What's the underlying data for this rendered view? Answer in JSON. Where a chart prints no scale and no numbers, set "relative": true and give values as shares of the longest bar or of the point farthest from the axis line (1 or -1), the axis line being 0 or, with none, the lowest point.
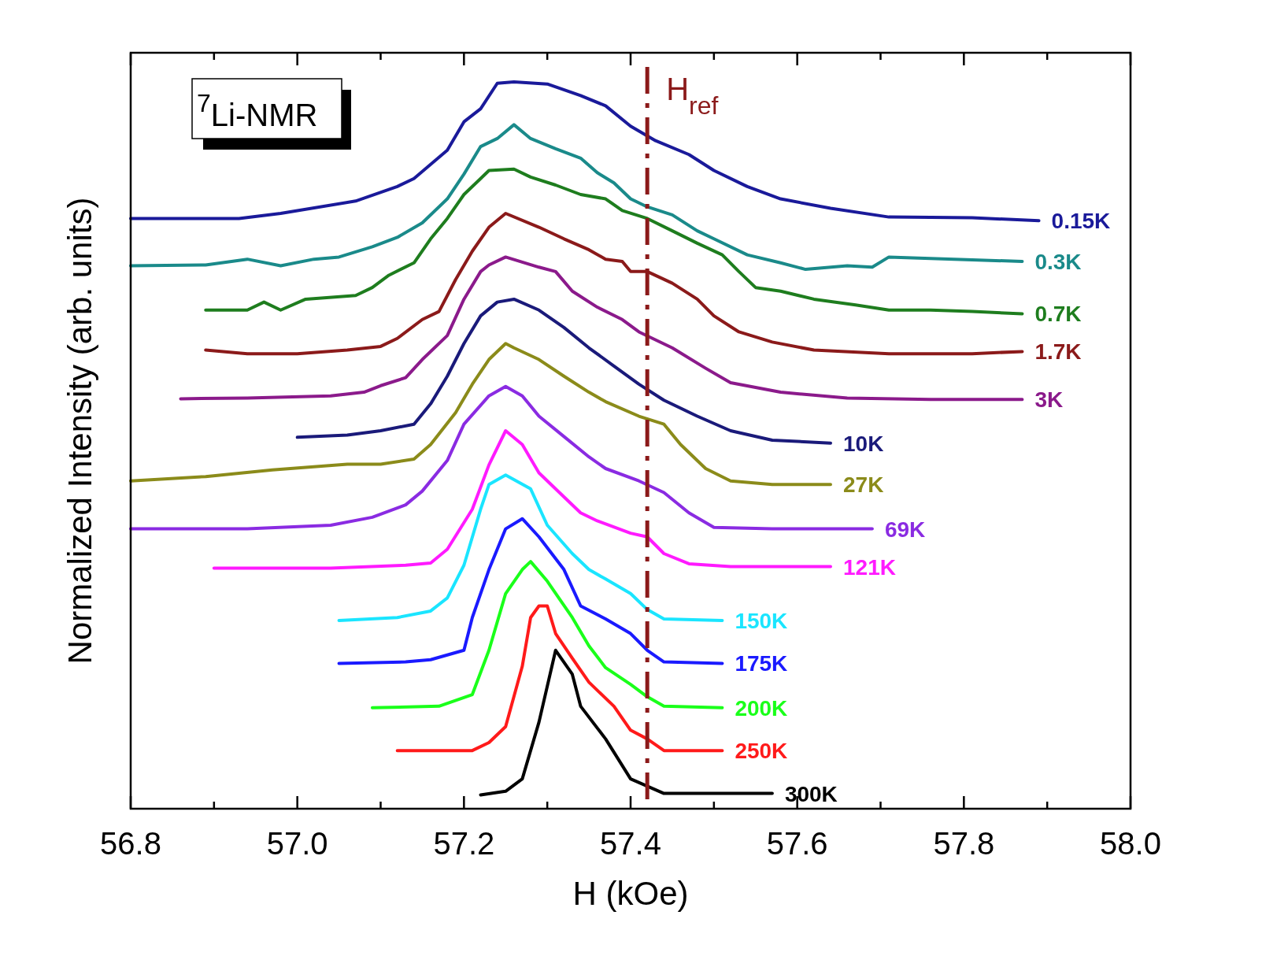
{
  "chart_data": {
    "type": "line",
    "relative": true,
    "xlabel": "H (kOe)",
    "ylabel": "Normalized Intensity (arb. units)",
    "xlim": [
      56.8,
      58.0
    ],
    "xticks": [
      {
        "value": 56.8,
        "label": "56.8"
      },
      {
        "value": 56.9,
        "label": null
      },
      {
        "value": 57.0,
        "label": "57.0"
      },
      {
        "value": 57.1,
        "label": null
      },
      {
        "value": 57.2,
        "label": "57.2"
      },
      {
        "value": 57.3,
        "label": null
      },
      {
        "value": 57.4,
        "label": "57.4"
      },
      {
        "value": 57.5,
        "label": null
      },
      {
        "value": 57.6,
        "label": "57.6"
      },
      {
        "value": 57.7,
        "label": null
      },
      {
        "value": 57.8,
        "label": "57.8"
      },
      {
        "value": 57.9,
        "label": null
      },
      {
        "value": 58.0,
        "label": "58.0"
      }
    ],
    "grid": false,
    "legend": false,
    "marker": "none",
    "line_style": "solid",
    "tick_labels": "x",
    "ref_lines": [
      {
        "axis": "x",
        "value": 57.42,
        "label": "H$_{ref}$",
        "color": "#8b1a1a",
        "line_style": "dashed"
      }
    ],
    "annotations": [
      "$^{7}$Li-NMR"
    ],
    "series": [
      {
        "name": "0.15K",
        "color": "#1a1a9a",
        "x": [
          56.8,
          56.93,
          56.98,
          57.07,
          57.12,
          57.14,
          57.18,
          57.2,
          57.22,
          57.24,
          57.26,
          57.3,
          57.34,
          57.37,
          57.4,
          57.43,
          57.47,
          57.5,
          57.54,
          57.58,
          57.64,
          57.71,
          57.81,
          57.89
        ],
        "values": [
          0.812,
          0.812,
          0.819,
          0.836,
          0.856,
          0.867,
          0.906,
          0.945,
          0.963,
          0.998,
          1.0,
          0.997,
          0.981,
          0.967,
          0.939,
          0.919,
          0.9,
          0.878,
          0.856,
          0.839,
          0.826,
          0.814,
          0.813,
          0.809
        ]
      },
      {
        "name": "0.3K",
        "color": "#1a8a8a",
        "x": [
          56.8,
          56.89,
          56.94,
          56.98,
          57.02,
          57.05,
          57.09,
          57.12,
          57.15,
          57.18,
          57.2,
          57.22,
          57.24,
          57.26,
          57.28,
          57.31,
          57.34,
          57.36,
          57.38,
          57.4,
          57.42,
          57.45,
          57.48,
          57.5,
          57.54,
          57.58,
          57.61,
          57.66,
          57.69,
          57.71,
          57.81,
          57.87
        ],
        "values": [
          0.747,
          0.748,
          0.756,
          0.747,
          0.756,
          0.759,
          0.773,
          0.786,
          0.806,
          0.839,
          0.873,
          0.911,
          0.922,
          0.941,
          0.922,
          0.908,
          0.895,
          0.875,
          0.861,
          0.839,
          0.828,
          0.817,
          0.795,
          0.784,
          0.762,
          0.751,
          0.742,
          0.747,
          0.745,
          0.759,
          0.755,
          0.753
        ]
      },
      {
        "name": "0.7K",
        "color": "#1e7d1e",
        "x": [
          56.89,
          56.94,
          56.96,
          56.98,
          57.01,
          57.07,
          57.09,
          57.11,
          57.14,
          57.16,
          57.18,
          57.2,
          57.22,
          57.23,
          57.26,
          57.28,
          57.31,
          57.34,
          57.37,
          57.39,
          57.42,
          57.45,
          57.48,
          57.51,
          57.53,
          57.55,
          57.58,
          57.62,
          57.67,
          57.71,
          57.76,
          57.81,
          57.87
        ],
        "values": [
          0.686,
          0.686,
          0.697,
          0.686,
          0.701,
          0.706,
          0.717,
          0.734,
          0.751,
          0.784,
          0.812,
          0.845,
          0.867,
          0.878,
          0.88,
          0.869,
          0.858,
          0.845,
          0.839,
          0.823,
          0.812,
          0.795,
          0.778,
          0.762,
          0.739,
          0.717,
          0.712,
          0.701,
          0.693,
          0.686,
          0.686,
          0.684,
          0.681
        ]
      },
      {
        "name": "1.7K",
        "color": "#8b1a1a",
        "x": [
          56.89,
          56.94,
          57.0,
          57.06,
          57.1,
          57.12,
          57.15,
          57.17,
          57.19,
          57.21,
          57.23,
          57.25,
          57.29,
          57.32,
          57.35,
          57.37,
          57.39,
          57.4,
          57.42,
          57.45,
          57.48,
          57.5,
          57.53,
          57.57,
          57.62,
          57.71,
          57.81,
          57.87
        ],
        "values": [
          0.631,
          0.626,
          0.626,
          0.631,
          0.636,
          0.647,
          0.673,
          0.684,
          0.728,
          0.767,
          0.8,
          0.819,
          0.8,
          0.784,
          0.769,
          0.756,
          0.753,
          0.739,
          0.739,
          0.723,
          0.701,
          0.678,
          0.656,
          0.642,
          0.631,
          0.626,
          0.626,
          0.629
        ]
      },
      {
        "name": "3K",
        "color": "#8b1a8b",
        "x": [
          56.86,
          56.94,
          57.04,
          57.08,
          57.1,
          57.13,
          57.15,
          57.18,
          57.2,
          57.22,
          57.23,
          57.25,
          57.29,
          57.31,
          57.33,
          57.36,
          57.39,
          57.41,
          57.45,
          57.49,
          57.52,
          57.58,
          57.66,
          57.76,
          57.87
        ],
        "values": [
          0.564,
          0.565,
          0.568,
          0.573,
          0.582,
          0.593,
          0.618,
          0.651,
          0.701,
          0.739,
          0.748,
          0.759,
          0.745,
          0.739,
          0.712,
          0.69,
          0.673,
          0.656,
          0.634,
          0.606,
          0.586,
          0.573,
          0.565,
          0.563,
          0.563
        ]
      },
      {
        "name": "10K",
        "color": "#1a1a7a",
        "x": [
          57.0,
          57.06,
          57.1,
          57.14,
          57.16,
          57.18,
          57.2,
          57.22,
          57.24,
          57.26,
          57.29,
          57.32,
          57.35,
          57.38,
          57.41,
          57.44,
          57.48,
          57.52,
          57.57,
          57.64
        ],
        "values": [
          0.511,
          0.514,
          0.52,
          0.529,
          0.557,
          0.595,
          0.64,
          0.678,
          0.697,
          0.701,
          0.686,
          0.662,
          0.634,
          0.609,
          0.584,
          0.562,
          0.54,
          0.52,
          0.507,
          0.503
        ]
      },
      {
        "name": "27K",
        "color": "#8b8b1a",
        "x": [
          56.8,
          56.89,
          56.97,
          57.06,
          57.1,
          57.14,
          57.16,
          57.19,
          57.21,
          57.23,
          57.25,
          57.26,
          57.29,
          57.32,
          57.35,
          57.37,
          57.41,
          57.44,
          57.46,
          57.49,
          57.52,
          57.57,
          57.64
        ],
        "values": [
          0.451,
          0.457,
          0.466,
          0.474,
          0.474,
          0.481,
          0.501,
          0.545,
          0.584,
          0.618,
          0.64,
          0.634,
          0.618,
          0.595,
          0.573,
          0.56,
          0.54,
          0.529,
          0.501,
          0.468,
          0.451,
          0.446,
          0.446
        ]
      },
      {
        "name": "69K",
        "color": "#8a2be2",
        "x": [
          56.8,
          56.94,
          57.04,
          57.09,
          57.13,
          57.15,
          57.18,
          57.2,
          57.23,
          57.25,
          57.27,
          57.29,
          57.32,
          57.35,
          57.37,
          57.41,
          57.44,
          57.47,
          57.5,
          57.57,
          57.69
        ],
        "values": [
          0.385,
          0.385,
          0.39,
          0.401,
          0.418,
          0.437,
          0.479,
          0.529,
          0.568,
          0.581,
          0.568,
          0.54,
          0.512,
          0.484,
          0.468,
          0.451,
          0.435,
          0.407,
          0.387,
          0.385,
          0.385
        ]
      },
      {
        "name": "121K",
        "color": "#ff1aff",
        "x": [
          56.9,
          57.04,
          57.13,
          57.16,
          57.18,
          57.21,
          57.23,
          57.25,
          57.27,
          57.29,
          57.32,
          57.34,
          57.36,
          57.4,
          57.42,
          57.44,
          57.47,
          57.52,
          57.64
        ],
        "values": [
          0.331,
          0.331,
          0.335,
          0.338,
          0.357,
          0.412,
          0.473,
          0.52,
          0.501,
          0.462,
          0.429,
          0.407,
          0.396,
          0.379,
          0.374,
          0.351,
          0.337,
          0.333,
          0.333
        ]
      },
      {
        "name": "150K",
        "color": "#1ae5ff",
        "x": [
          57.05,
          57.12,
          57.16,
          57.18,
          57.2,
          57.22,
          57.23,
          57.25,
          57.28,
          57.3,
          57.33,
          57.35,
          57.37,
          57.4,
          57.42,
          57.44,
          57.51
        ],
        "values": [
          0.259,
          0.263,
          0.272,
          0.29,
          0.335,
          0.412,
          0.446,
          0.459,
          0.44,
          0.39,
          0.351,
          0.329,
          0.316,
          0.296,
          0.274,
          0.261,
          0.259
        ]
      },
      {
        "name": "175K",
        "color": "#1a1aff",
        "x": [
          57.05,
          57.13,
          57.16,
          57.2,
          57.21,
          57.23,
          57.25,
          57.27,
          57.29,
          57.32,
          57.34,
          57.37,
          57.4,
          57.42,
          57.44,
          57.51
        ],
        "values": [
          0.2,
          0.202,
          0.205,
          0.218,
          0.263,
          0.329,
          0.385,
          0.399,
          0.374,
          0.329,
          0.279,
          0.261,
          0.241,
          0.218,
          0.202,
          0.2
        ]
      },
      {
        "name": "200K",
        "color": "#1aff1a",
        "x": [
          57.09,
          57.17,
          57.21,
          57.23,
          57.25,
          57.27,
          57.28,
          57.3,
          57.33,
          57.35,
          57.37,
          57.4,
          57.42,
          57.44,
          57.51
        ],
        "values": [
          0.139,
          0.141,
          0.157,
          0.218,
          0.296,
          0.329,
          0.34,
          0.313,
          0.263,
          0.224,
          0.194,
          0.171,
          0.154,
          0.141,
          0.139
        ]
      },
      {
        "name": "250K",
        "color": "#ff1a1a",
        "x": [
          57.12,
          57.21,
          57.23,
          57.25,
          57.27,
          57.28,
          57.29,
          57.3,
          57.31,
          57.33,
          57.35,
          57.38,
          57.4,
          57.42,
          57.44,
          57.51
        ],
        "values": [
          0.08,
          0.08,
          0.091,
          0.113,
          0.196,
          0.263,
          0.279,
          0.279,
          0.241,
          0.207,
          0.174,
          0.141,
          0.108,
          0.096,
          0.08,
          0.08
        ]
      },
      {
        "name": "300K",
        "color": "#000000",
        "x": [
          57.22,
          57.25,
          57.27,
          57.29,
          57.31,
          57.33,
          57.34,
          57.37,
          57.4,
          57.44,
          57.57
        ],
        "values": [
          0.019,
          0.024,
          0.041,
          0.119,
          0.218,
          0.185,
          0.141,
          0.096,
          0.041,
          0.021,
          0.021
        ]
      }
    ]
  }
}
